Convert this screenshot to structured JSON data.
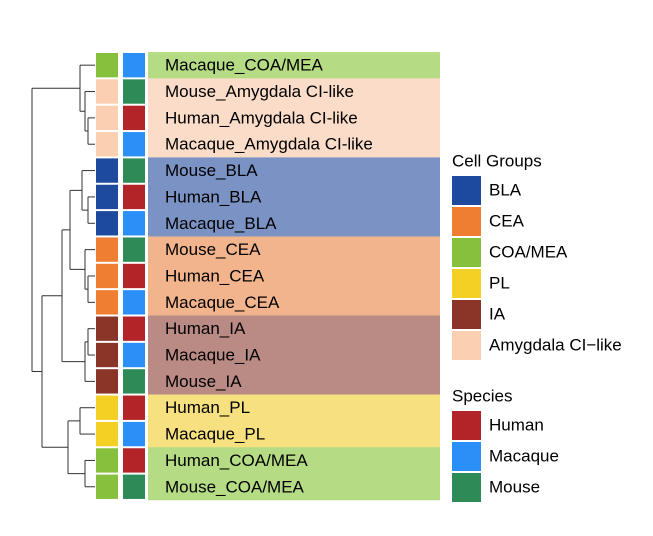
{
  "rows": [
    {
      "label": "Macaque_COA/MEA",
      "group": "COA/MEA",
      "species": "Macaque"
    },
    {
      "label": "Mouse_Amygdala CI-like",
      "group": "Amygdala CI−like",
      "species": "Mouse"
    },
    {
      "label": "Human_Amygdala CI-like",
      "group": "Amygdala CI−like",
      "species": "Human"
    },
    {
      "label": "Macaque_Amygdala CI-like",
      "group": "Amygdala CI−like",
      "species": "Macaque"
    },
    {
      "label": "Mouse_BLA",
      "group": "BLA",
      "species": "Mouse"
    },
    {
      "label": "Human_BLA",
      "group": "BLA",
      "species": "Human"
    },
    {
      "label": "Macaque_BLA",
      "group": "BLA",
      "species": "Macaque"
    },
    {
      "label": "Mouse_CEA",
      "group": "CEA",
      "species": "Mouse"
    },
    {
      "label": "Human_CEA",
      "group": "CEA",
      "species": "Human"
    },
    {
      "label": "Macaque_CEA",
      "group": "CEA",
      "species": "Macaque"
    },
    {
      "label": "Human_IA",
      "group": "IA",
      "species": "Human"
    },
    {
      "label": "Macaque_IA",
      "group": "IA",
      "species": "Macaque"
    },
    {
      "label": "Mouse_IA",
      "group": "IA",
      "species": "Mouse"
    },
    {
      "label": "Human_PL",
      "group": "PL",
      "species": "Human"
    },
    {
      "label": "Macaque_PL",
      "group": "PL",
      "species": "Macaque"
    },
    {
      "label": "Human_COA/MEA",
      "group": "COA/MEA",
      "species": "Human"
    },
    {
      "label": "Mouse_COA/MEA",
      "group": "COA/MEA",
      "species": "Mouse"
    }
  ],
  "legends": [
    {
      "title": "Cell Groups",
      "items": [
        {
          "label": "BLA",
          "color": "#1d4a9c",
          "band_color": "#7b93c4"
        },
        {
          "label": "CEA",
          "color": "#ef7e32",
          "band_color": "#f2b48c"
        },
        {
          "label": "COA/MEA",
          "color": "#86c03d",
          "band_color": "#b5dc85"
        },
        {
          "label": "PL",
          "color": "#f2d024",
          "band_color": "#f6e07f"
        },
        {
          "label": "IA",
          "color": "#8b3428",
          "band_color": "#ba8a84"
        },
        {
          "label": "Amygdala CI−like",
          "color": "#fbcfb1",
          "band_color": "#fbdcc8"
        }
      ]
    },
    {
      "title": "Species",
      "items": [
        {
          "label": "Human",
          "color": "#b22428"
        },
        {
          "label": "Macaque",
          "color": "#2a8ff7"
        },
        {
          "label": "Mouse",
          "color": "#2e8a57"
        }
      ]
    }
  ]
}
